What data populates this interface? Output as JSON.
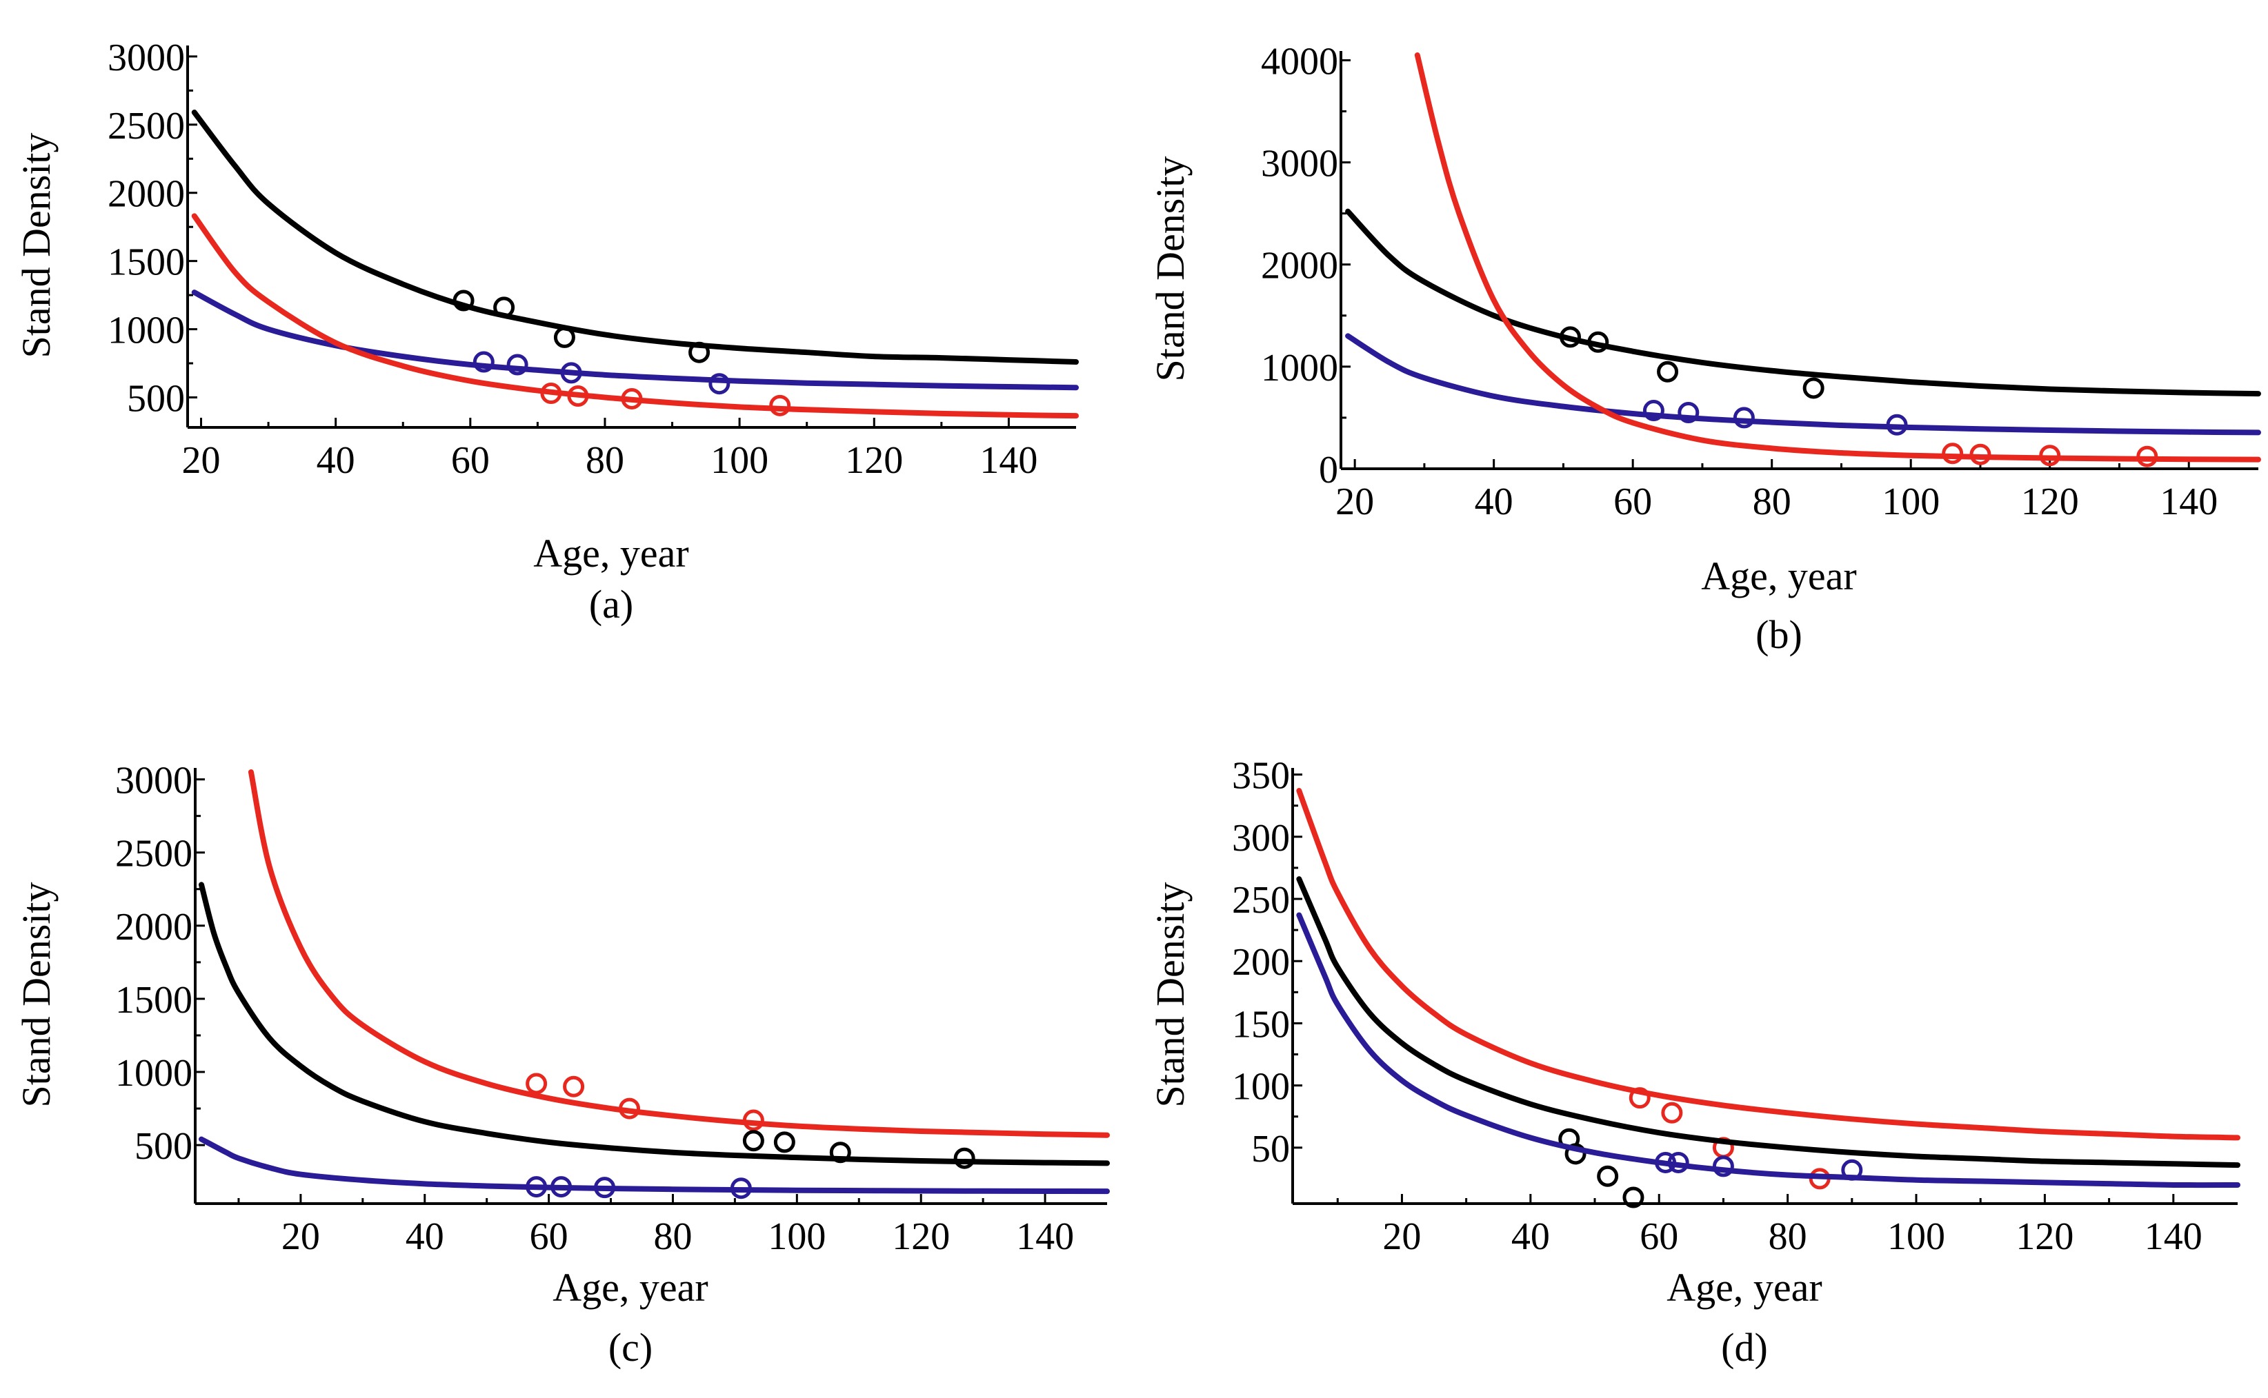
{
  "figure": {
    "colors": {
      "black": "#000000",
      "red": "#e8281e",
      "blue": "#2a1c96"
    }
  },
  "chart_data": [
    {
      "id": "a",
      "type": "line",
      "caption": "(a)",
      "xlabel": "Age, year",
      "ylabel": "Stand Density",
      "xlim": [
        18,
        150
      ],
      "ylim": [
        280,
        3050
      ],
      "xticks": [
        20,
        40,
        60,
        80,
        100,
        120,
        140
      ],
      "xminor": [
        30,
        50,
        70,
        90,
        110,
        130
      ],
      "yticks": [
        500,
        1000,
        1500,
        2000,
        2500,
        3000
      ],
      "yminor": [
        750,
        1250,
        1750,
        2250,
        2750
      ],
      "series": [
        {
          "name": "black",
          "color": "#000000",
          "curve": {
            "x": [
              19,
              25,
              30,
              40,
              50,
              60,
              70,
              80,
              90,
              100,
              110,
              120,
              130,
              140,
              150
            ],
            "y": [
              2590,
              2200,
              1920,
              1560,
              1330,
              1160,
              1050,
              960,
              900,
              860,
              830,
              800,
              790,
              775,
              760
            ]
          },
          "points": {
            "x": [
              59,
              65,
              74,
              94
            ],
            "y": [
              1210,
              1160,
              940,
              830
            ]
          }
        },
        {
          "name": "blue",
          "color": "#2a1c96",
          "curve": {
            "x": [
              19,
              25,
              30,
              40,
              50,
              60,
              70,
              80,
              90,
              100,
              110,
              120,
              130,
              140,
              150
            ],
            "y": [
              1270,
              1110,
              1000,
              880,
              800,
              740,
              700,
              665,
              640,
              620,
              605,
              595,
              585,
              578,
              572
            ]
          },
          "points": {
            "x": [
              62,
              67,
              75,
              97
            ],
            "y": [
              760,
              740,
              680,
              600
            ]
          }
        },
        {
          "name": "red",
          "color": "#e8281e",
          "curve": {
            "x": [
              19,
              25,
              30,
              40,
              50,
              60,
              70,
              80,
              90,
              100,
              110,
              120,
              130,
              140,
              150
            ],
            "y": [
              1830,
              1420,
              1200,
              900,
              730,
              620,
              550,
              500,
              460,
              430,
              410,
              395,
              382,
              372,
              365
            ]
          },
          "points": {
            "x": [
              72,
              76,
              84,
              106
            ],
            "y": [
              530,
              510,
              490,
              440
            ]
          }
        }
      ]
    },
    {
      "id": "b",
      "type": "line",
      "caption": "(b)",
      "xlabel": "Age, year",
      "ylabel": "Stand Density",
      "xlim": [
        18,
        150
      ],
      "ylim": [
        0,
        4050
      ],
      "xticks": [
        20,
        40,
        60,
        80,
        100,
        120,
        140
      ],
      "xminor": [
        30,
        50,
        70,
        90,
        110,
        130
      ],
      "yticks": [
        0,
        1000,
        2000,
        3000,
        4000
      ],
      "yminor": [
        500,
        1500,
        2500,
        3500
      ],
      "series": [
        {
          "name": "black",
          "color": "#000000",
          "curve": {
            "x": [
              19,
              25,
              30,
              40,
              50,
              60,
              70,
              80,
              90,
              100,
              110,
              120,
              130,
              140,
              150
            ],
            "y": [
              2520,
              2080,
              1830,
              1500,
              1290,
              1150,
              1040,
              960,
              900,
              850,
              810,
              780,
              760,
              745,
              735
            ]
          },
          "points": {
            "x": [
              51,
              55,
              65,
              86
            ],
            "y": [
              1290,
              1240,
              950,
              790
            ]
          }
        },
        {
          "name": "blue",
          "color": "#2a1c96",
          "curve": {
            "x": [
              19,
              25,
              30,
              40,
              50,
              60,
              70,
              80,
              90,
              100,
              110,
              120,
              130,
              140,
              150
            ],
            "y": [
              1300,
              1040,
              890,
              710,
              610,
              540,
              490,
              455,
              425,
              405,
              390,
              378,
              368,
              360,
              355
            ]
          },
          "points": {
            "x": [
              63,
              68,
              76,
              98
            ],
            "y": [
              570,
              550,
              500,
              430
            ]
          }
        },
        {
          "name": "red",
          "color": "#e8281e",
          "curve": {
            "x": [
              29,
              32,
              35,
              40,
              45,
              50,
              55,
              60,
              70,
              80,
              90,
              100,
              110,
              120,
              130,
              140,
              150
            ],
            "y": [
              4050,
              3200,
              2500,
              1650,
              1150,
              820,
              600,
              450,
              280,
              200,
              155,
              130,
              115,
              105,
              98,
              93,
              90
            ]
          },
          "points": {
            "x": [
              106,
              110,
              120,
              134
            ],
            "y": [
              150,
              140,
              130,
              120
            ]
          }
        }
      ]
    },
    {
      "id": "c",
      "type": "line",
      "caption": "(c)",
      "xlabel": "Age, year",
      "ylabel": "Stand Density",
      "xlim": [
        3,
        150
      ],
      "ylim": [
        100,
        3050
      ],
      "xticks": [
        20,
        40,
        60,
        80,
        100,
        120,
        140
      ],
      "xminor": [
        10,
        30,
        50,
        70,
        90,
        110,
        130
      ],
      "yticks": [
        500,
        1000,
        1500,
        2000,
        2500,
        3000
      ],
      "yminor": [
        750,
        1250,
        1750,
        2250,
        2750
      ],
      "series": [
        {
          "name": "red",
          "color": "#e8281e",
          "curve": {
            "x": [
              12,
              15,
              20,
              25,
              30,
              40,
              50,
              60,
              70,
              80,
              90,
              100,
              110,
              120,
              130,
              140,
              150
            ],
            "y": [
              3050,
              2400,
              1850,
              1520,
              1320,
              1070,
              920,
              820,
              750,
              700,
              660,
              630,
              610,
              595,
              585,
              575,
              568
            ]
          },
          "points": {
            "x": [
              58,
              64,
              73,
              93
            ],
            "y": [
              920,
              900,
              750,
              670
            ]
          }
        },
        {
          "name": "black",
          "color": "#000000",
          "curve": {
            "x": [
              4,
              6,
              8,
              10,
              15,
              20,
              25,
              30,
              40,
              50,
              60,
              70,
              80,
              90,
              100,
              110,
              120,
              130,
              140,
              150
            ],
            "y": [
              2280,
              1950,
              1720,
              1540,
              1230,
              1040,
              900,
              800,
              660,
              580,
              520,
              480,
              450,
              430,
              415,
              402,
              392,
              385,
              380,
              376
            ]
          },
          "points": {
            "x": [
              93,
              98,
              107,
              127
            ],
            "y": [
              530,
              520,
              450,
              410
            ]
          }
        },
        {
          "name": "blue",
          "color": "#2a1c96",
          "curve": {
            "x": [
              4,
              8,
              10,
              15,
              20,
              30,
              40,
              50,
              60,
              70,
              80,
              90,
              100,
              110,
              120,
              130,
              140,
              150
            ],
            "y": [
              540,
              450,
              410,
              345,
              300,
              260,
              235,
              220,
              210,
              203,
              198,
              194,
              191,
              189,
              187,
              186,
              185,
              184
            ]
          },
          "points": {
            "x": [
              58,
              62,
              69,
              91
            ],
            "y": [
              215,
              215,
              210,
              205
            ]
          }
        }
      ]
    },
    {
      "id": "d",
      "type": "line",
      "caption": "(d)",
      "xlabel": "Age, year",
      "ylabel": "Stand Density",
      "xlim": [
        3,
        150
      ],
      "ylim": [
        5,
        352
      ],
      "xticks": [
        20,
        40,
        60,
        80,
        100,
        120,
        140
      ],
      "xminor": [
        10,
        30,
        50,
        70,
        90,
        110,
        130
      ],
      "yticks": [
        50,
        100,
        150,
        200,
        250,
        300,
        350
      ],
      "yminor": [
        75,
        125,
        175,
        225,
        275,
        325
      ],
      "series": [
        {
          "name": "red",
          "color": "#e8281e",
          "curve": {
            "x": [
              4,
              8,
              10,
              15,
              20,
              25,
              30,
              40,
              50,
              60,
              70,
              80,
              90,
              100,
              110,
              120,
              130,
              140,
              150
            ],
            "y": [
              337,
              280,
              255,
              210,
              180,
              158,
              141,
              118,
              103,
              92,
              84,
              78,
              73,
              69,
              66,
              63,
              61,
              59,
              58
            ]
          },
          "points": {
            "x": [
              57,
              62,
              70,
              85
            ],
            "y": [
              90,
              78,
              50,
              25
            ]
          }
        },
        {
          "name": "black",
          "color": "#000000",
          "curve": {
            "x": [
              4,
              8,
              10,
              15,
              20,
              25,
              30,
              40,
              50,
              60,
              70,
              80,
              90,
              100,
              110,
              120,
              130,
              140,
              150
            ],
            "y": [
              266,
              218,
              195,
              158,
              134,
              117,
              104,
              85,
              72,
              62,
              55,
              50,
              46,
              43,
              41,
              39,
              38,
              37,
              36
            ]
          },
          "points": {
            "x": [
              46,
              47,
              52,
              56
            ],
            "y": [
              57,
              45,
              27,
              10
            ]
          }
        },
        {
          "name": "blue",
          "color": "#2a1c96",
          "curve": {
            "x": [
              4,
              8,
              10,
              15,
              20,
              25,
              30,
              40,
              50,
              60,
              70,
              80,
              90,
              100,
              110,
              120,
              130,
              140,
              150
            ],
            "y": [
              237,
              188,
              165,
              128,
              104,
              88,
              76,
              58,
              46,
              38,
              32,
              28,
              26,
              24,
              23,
              22,
              21,
              20,
              20
            ]
          },
          "points": {
            "x": [
              61,
              63,
              70,
              90
            ],
            "y": [
              38,
              38,
              35,
              32
            ]
          }
        }
      ]
    }
  ]
}
